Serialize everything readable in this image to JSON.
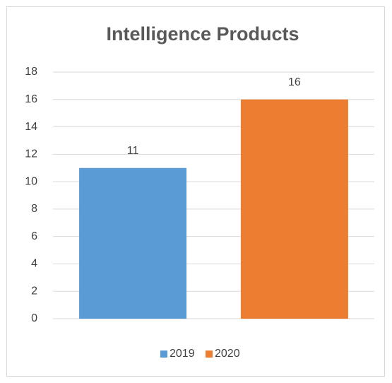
{
  "chart_data": {
    "type": "bar",
    "title": "Intelligence Products",
    "categories": [
      null
    ],
    "series": [
      {
        "name": "2019",
        "color": "#5b9bd5",
        "values": [
          11
        ]
      },
      {
        "name": "2020",
        "color": "#ed7d31",
        "values": [
          16
        ]
      }
    ],
    "ylim": [
      0,
      18
    ],
    "yticks": [
      0,
      2,
      4,
      6,
      8,
      10,
      12,
      14,
      16,
      18
    ],
    "grid": true,
    "legend": "bottom"
  }
}
